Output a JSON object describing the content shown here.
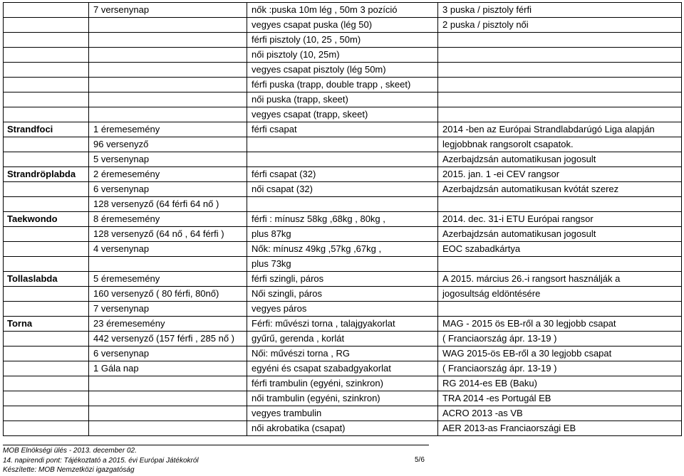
{
  "rows": [
    [
      "",
      "7 versenynap",
      "nők :puska 10m lég , 50m 3 pozíció",
      "3 puska / pisztoly férfi"
    ],
    [
      "",
      "",
      "vegyes csapat puska (lég 50)",
      "2 puska / pisztoly női"
    ],
    [
      "",
      "",
      "férfi pisztoly (10, 25 , 50m)",
      ""
    ],
    [
      "",
      "",
      "női pisztoly (10, 25m)",
      ""
    ],
    [
      "",
      "",
      "vegyes csapat pisztoly (lég 50m)",
      ""
    ],
    [
      "",
      "",
      "férfi puska (trapp, double trapp , skeet)",
      ""
    ],
    [
      "",
      "",
      "női puska (trapp, skeet)",
      ""
    ],
    [
      "",
      "",
      "vegyes csapat (trapp, skeet)",
      ""
    ],
    [
      "Strandfoci",
      "1 éremesemény",
      "férfi csapat",
      "2014 -ben az Európai Strandlabdarúgó Liga alapján"
    ],
    [
      "",
      "96 versenyző",
      "",
      "legjobbnak rangsorolt csapatok."
    ],
    [
      "",
      "5 versenynap",
      "",
      "Azerbajdzsán automatikusan jogosult"
    ],
    [
      "Strandröplabda",
      "2 éremesemény",
      "férfi csapat (32)",
      "2015. jan. 1 -ei CEV rangsor"
    ],
    [
      "",
      "6 versenynap",
      "női csapat (32)",
      "Azerbajdzsán automatikusan kvótát szerez"
    ],
    [
      "",
      "128 versenyző (64 férfi 64 nő )",
      "",
      ""
    ],
    [
      "Taekwondo",
      "8 éremesemény",
      "férfi : mínusz 58kg ,68kg , 80kg ,",
      "2014. dec. 31-i ETU Európai rangsor"
    ],
    [
      "",
      "128 versenyző (64 nő , 64 férfi )",
      "plus 87kg",
      "Azerbajdzsán automatikusan jogosult"
    ],
    [
      "",
      "4 versenynap",
      "Nők: mínusz 49kg ,57kg ,67kg ,",
      "EOC szabadkártya"
    ],
    [
      "",
      "",
      "plus 73kg",
      ""
    ],
    [
      "Tollaslabda",
      "5 éremesemény",
      "férfi szingli, páros",
      "A 2015. március 26.-i rangsort használják a"
    ],
    [
      "",
      "160 versenyző ( 80 férfi, 80nő)",
      "Női szingli, páros",
      "jogosultság eldöntésére"
    ],
    [
      "",
      "7 versenynap",
      "vegyes páros",
      ""
    ],
    [
      "Torna",
      "23 éremesemény",
      "Férfi: művészi torna , talajgyakorlat",
      "MAG - 2015 ös EB-ről a 30 legjobb csapat"
    ],
    [
      "",
      "442 versenyző (157 férfi , 285 nő )",
      "gyűrű, gerenda , korlát",
      "( Franciaország ápr. 13-19 )"
    ],
    [
      "",
      "6 versenynap",
      "Női: művészi torna , RG",
      "WAG 2015-ös EB-ről a 30 legjobb csapat"
    ],
    [
      "",
      "1 Gála nap",
      "egyéni és csapat szabadgyakorlat",
      "( Franciaország ápr. 13-19 )"
    ],
    [
      "",
      "",
      "férfi trambulin (egyéni, szinkron)",
      "RG 2014-es EB (Baku)"
    ],
    [
      "",
      "",
      "női trambulin (egyéni, szinkron)",
      "TRA 2014 -es Portugál EB"
    ],
    [
      "",
      "",
      "vegyes trambulin",
      "ACRO 2013 -as VB"
    ],
    [
      "",
      "",
      "női akrobatika (csapat)",
      "AER 2013-as Franciaországi EB"
    ]
  ],
  "footer": {
    "line1": "MOB Elnökségi ülés - 2013. december 02.",
    "line2": "14. napirendi pont: Tájékoztató a 2015. évi Európai Játékokról",
    "line3": "Készítette: MOB Nemzetközi igazgatóság",
    "page": "5/6"
  }
}
